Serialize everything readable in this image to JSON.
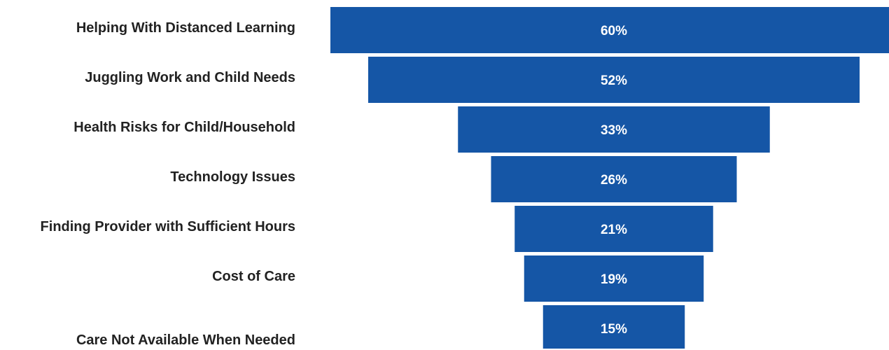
{
  "chart_data": {
    "type": "bar",
    "orientation": "horizontal-funnel",
    "categories": [
      "Helping With Distanced Learning",
      "Juggling Work and Child Needs",
      "Health Risks for Child/Household",
      "Technology Issues",
      "Finding Provider with Sufficient Hours",
      "Cost of Care",
      "Care Not Available When Needed"
    ],
    "values": [
      60,
      52,
      33,
      26,
      21,
      19,
      15
    ],
    "value_labels": [
      "60%",
      "52%",
      "33%",
      "26%",
      "21%",
      "19%",
      "15%"
    ],
    "unit": "%",
    "title": "",
    "xlabel": "",
    "ylabel": "",
    "grid": false,
    "legend": "none"
  },
  "colors": {
    "bar": "#1556A6",
    "label_text": "#222222",
    "value_text": "#ffffff"
  }
}
